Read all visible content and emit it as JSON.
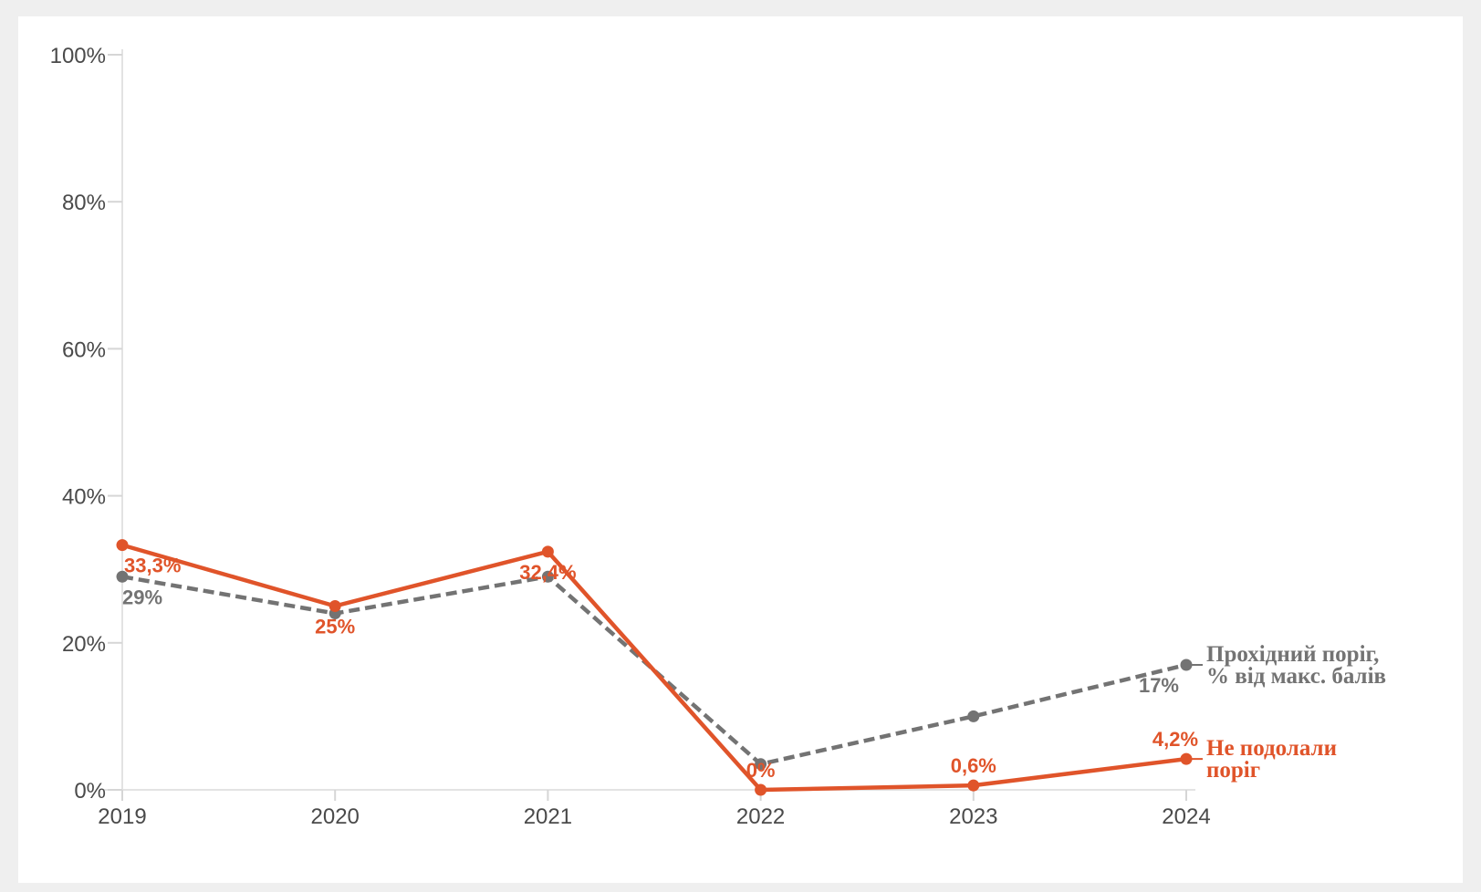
{
  "chart_data": {
    "type": "line",
    "x": [
      "2019",
      "2020",
      "2021",
      "2022",
      "2023",
      "2024"
    ],
    "ylim": [
      0,
      100
    ],
    "y_ticks": [
      "0%",
      "20%",
      "40%",
      "60%",
      "80%",
      "100%"
    ],
    "grid": false,
    "series": [
      {
        "name": "Прохідний поріг, % від макс. балів",
        "name_lines": [
          "Прохідний поріг,",
          "% від макс. балів"
        ],
        "color": "#737373",
        "style": "dashed",
        "values": [
          29,
          24,
          29,
          3.5,
          10,
          17
        ],
        "labels": [
          "29%",
          "",
          "",
          "",
          "",
          "17%"
        ]
      },
      {
        "name": "Не подолали поріг",
        "name_lines": [
          "Не подолали",
          "поріг"
        ],
        "color": "#e0542a",
        "style": "solid",
        "values": [
          33.3,
          25,
          32.4,
          0,
          0.6,
          4.2
        ],
        "labels": [
          "33,3%",
          "25%",
          "32,4%",
          "0%",
          "0,6%",
          "4,2%"
        ]
      }
    ]
  }
}
